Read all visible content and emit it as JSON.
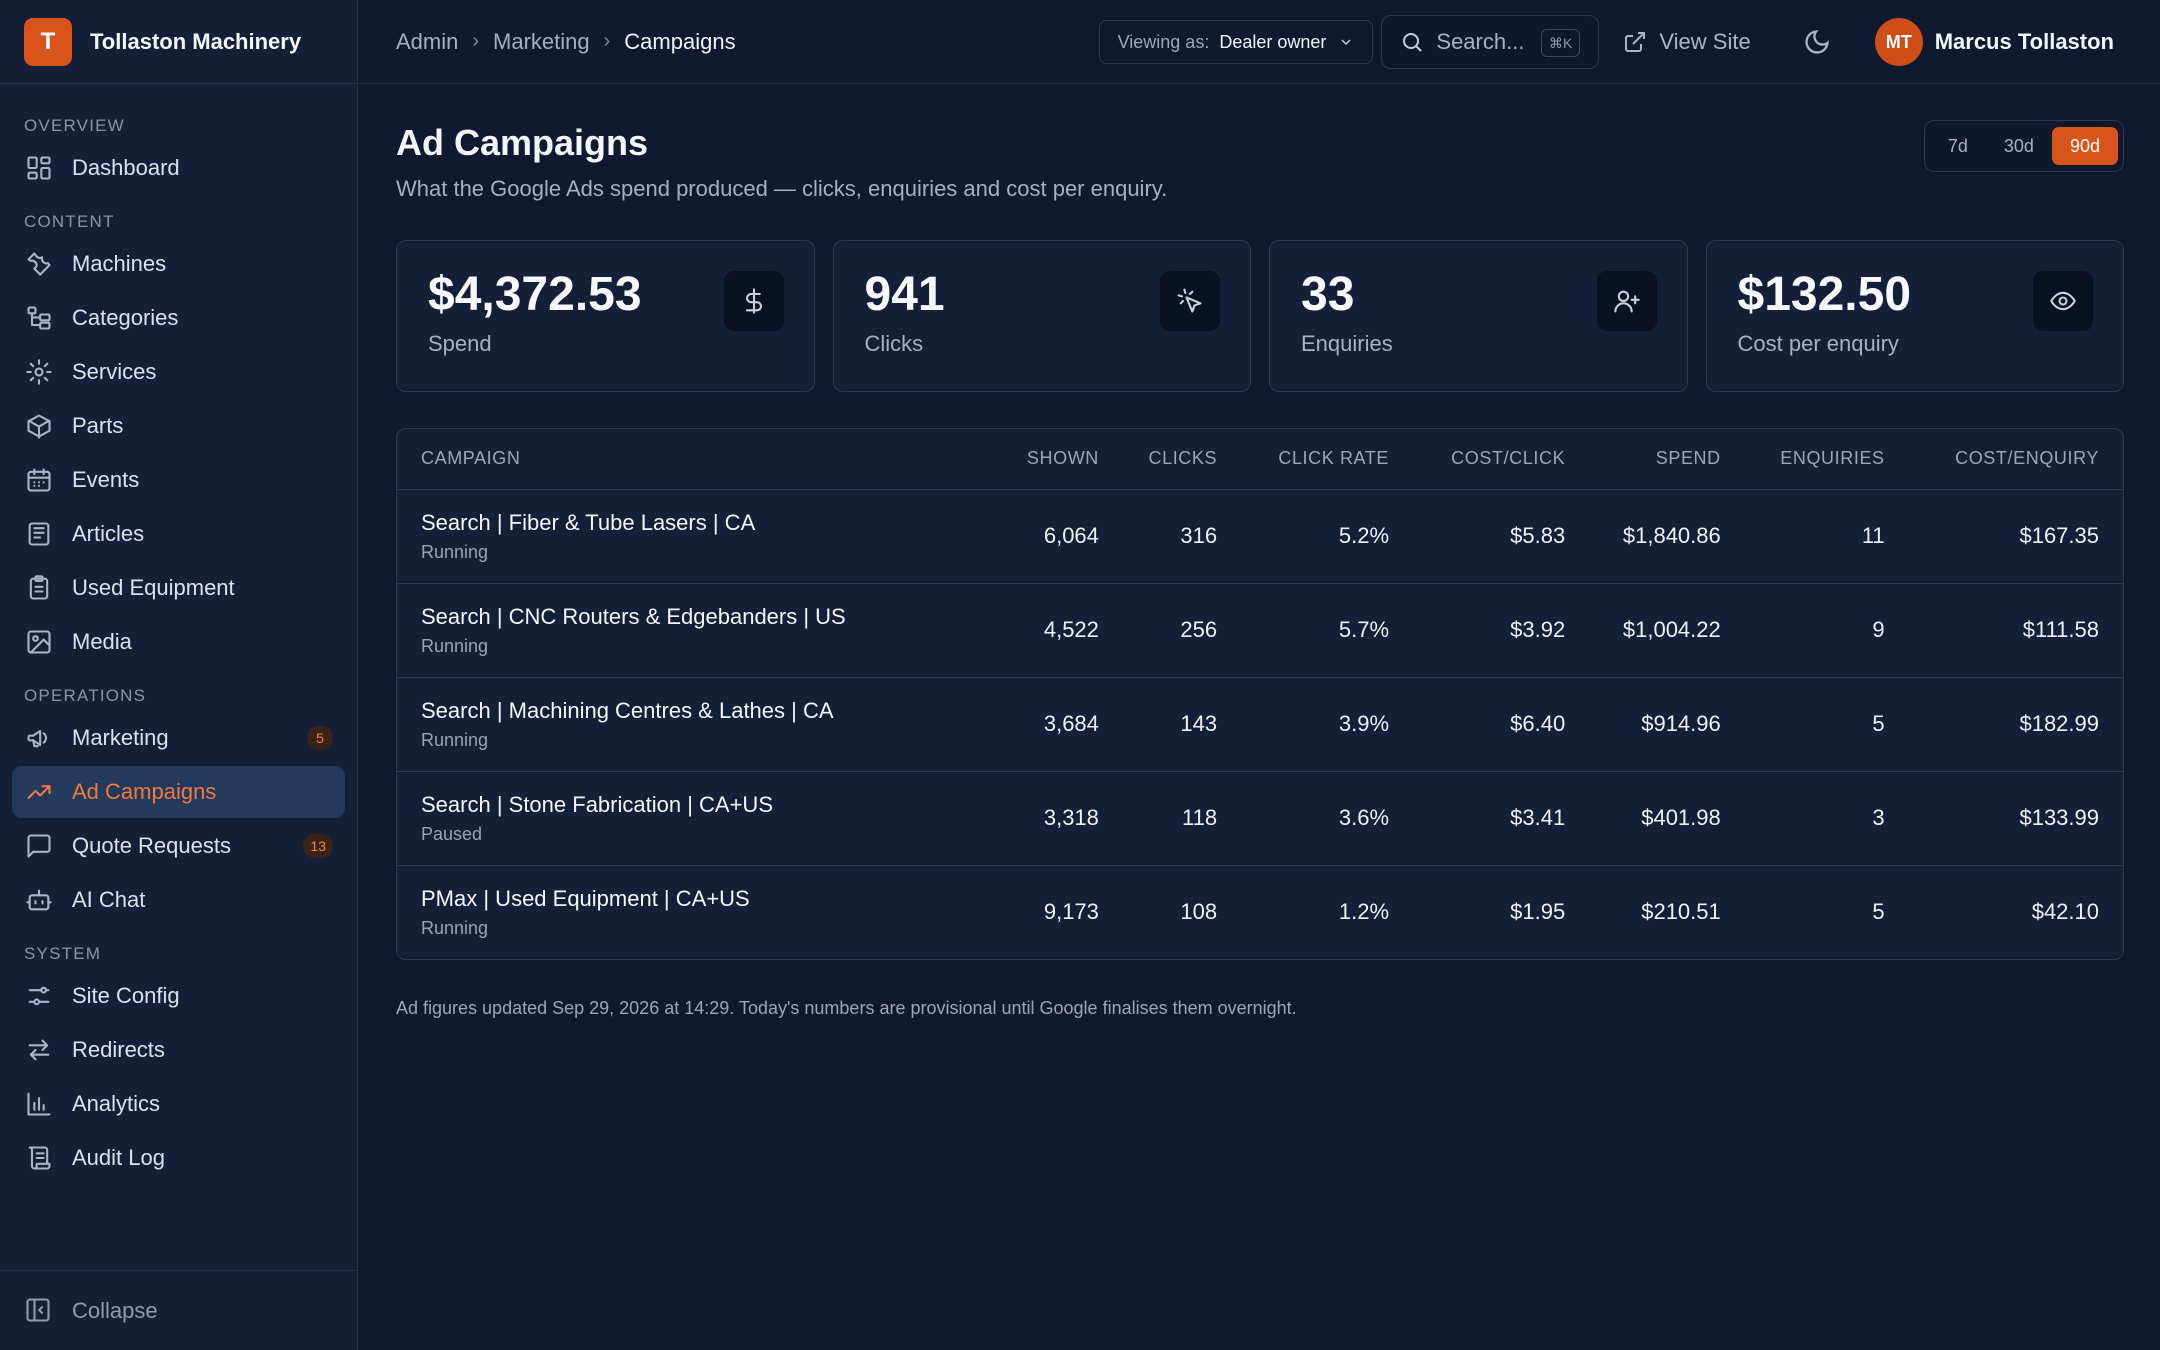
{
  "brand": {
    "initial": "T",
    "name": "Tollaston Machinery"
  },
  "sidebar": {
    "sections": [
      {
        "title": "OVERVIEW",
        "items": [
          {
            "label": "Dashboard",
            "icon": "dashboard-icon"
          }
        ]
      },
      {
        "title": "CONTENT",
        "items": [
          {
            "label": "Machines",
            "icon": "wrench-icon"
          },
          {
            "label": "Categories",
            "icon": "folder-tree-icon"
          },
          {
            "label": "Services",
            "icon": "gear-icon"
          },
          {
            "label": "Parts",
            "icon": "package-icon"
          },
          {
            "label": "Events",
            "icon": "calendar-icon"
          },
          {
            "label": "Articles",
            "icon": "newspaper-icon"
          },
          {
            "label": "Used Equipment",
            "icon": "clipboard-icon"
          },
          {
            "label": "Media",
            "icon": "image-icon"
          }
        ]
      },
      {
        "title": "OPERATIONS",
        "items": [
          {
            "label": "Marketing",
            "icon": "megaphone-icon",
            "badge": "5"
          },
          {
            "label": "Ad Campaigns",
            "icon": "trending-up-icon",
            "active": true
          },
          {
            "label": "Quote Requests",
            "icon": "message-icon",
            "badge": "13"
          },
          {
            "label": "AI Chat",
            "icon": "bot-icon"
          }
        ]
      },
      {
        "title": "SYSTEM",
        "items": [
          {
            "label": "Site Config",
            "icon": "sliders-icon"
          },
          {
            "label": "Redirects",
            "icon": "arrows-icon"
          },
          {
            "label": "Analytics",
            "icon": "bar-chart-icon"
          },
          {
            "label": "Audit Log",
            "icon": "scroll-icon"
          }
        ]
      }
    ],
    "collapse_label": "Collapse"
  },
  "header": {
    "breadcrumb": [
      "Admin",
      "Marketing",
      "Campaigns"
    ],
    "viewing_label": "Viewing as:",
    "viewing_value": "Dealer owner",
    "search_placeholder": "Search...",
    "search_shortcut": "⌘K",
    "view_site": "View Site",
    "user_initials": "MT",
    "user_name": "Marcus Tollaston"
  },
  "page": {
    "title": "Ad Campaigns",
    "subtitle": "What the Google Ads spend produced — clicks, enquiries and cost per enquiry.",
    "ranges": [
      "7d",
      "30d",
      "90d"
    ],
    "active_range": "90d"
  },
  "stats": [
    {
      "value": "$4,372.53",
      "label": "Spend",
      "icon": "dollar-icon"
    },
    {
      "value": "941",
      "label": "Clicks",
      "icon": "cursor-click-icon"
    },
    {
      "value": "33",
      "label": "Enquiries",
      "icon": "user-plus-icon"
    },
    {
      "value": "$132.50",
      "label": "Cost per enquiry",
      "icon": "eye-icon"
    }
  ],
  "table": {
    "columns": [
      "CAMPAIGN",
      "SHOWN",
      "CLICKS",
      "CLICK RATE",
      "COST/CLICK",
      "SPEND",
      "ENQUIRIES",
      "COST/ENQUIRY"
    ],
    "rows": [
      {
        "name": "Search | Fiber & Tube Lasers | CA",
        "status": "Running",
        "shown": "6,064",
        "clicks": "316",
        "rate": "5.2%",
        "cpc": "$5.83",
        "spend": "$1,840.86",
        "enquiries": "11",
        "cpe": "$167.35"
      },
      {
        "name": "Search | CNC Routers & Edgebanders | US",
        "status": "Running",
        "shown": "4,522",
        "clicks": "256",
        "rate": "5.7%",
        "cpc": "$3.92",
        "spend": "$1,004.22",
        "enquiries": "9",
        "cpe": "$111.58"
      },
      {
        "name": "Search | Machining Centres & Lathes | CA",
        "status": "Running",
        "shown": "3,684",
        "clicks": "143",
        "rate": "3.9%",
        "cpc": "$6.40",
        "spend": "$914.96",
        "enquiries": "5",
        "cpe": "$182.99"
      },
      {
        "name": "Search | Stone Fabrication | CA+US",
        "status": "Paused",
        "shown": "3,318",
        "clicks": "118",
        "rate": "3.6%",
        "cpc": "$3.41",
        "spend": "$401.98",
        "enquiries": "3",
        "cpe": "$133.99"
      },
      {
        "name": "PMax | Used Equipment | CA+US",
        "status": "Running",
        "shown": "9,173",
        "clicks": "108",
        "rate": "1.2%",
        "cpc": "$1.95",
        "spend": "$210.51",
        "enquiries": "5",
        "cpe": "$42.10"
      }
    ]
  },
  "footnote": "Ad figures updated Sep 29, 2026 at 14:29. Today's numbers are provisional until Google finalises them overnight.",
  "colors": {
    "accent": "#d9541a",
    "background": "#0f1a30",
    "panel": "#142038"
  }
}
